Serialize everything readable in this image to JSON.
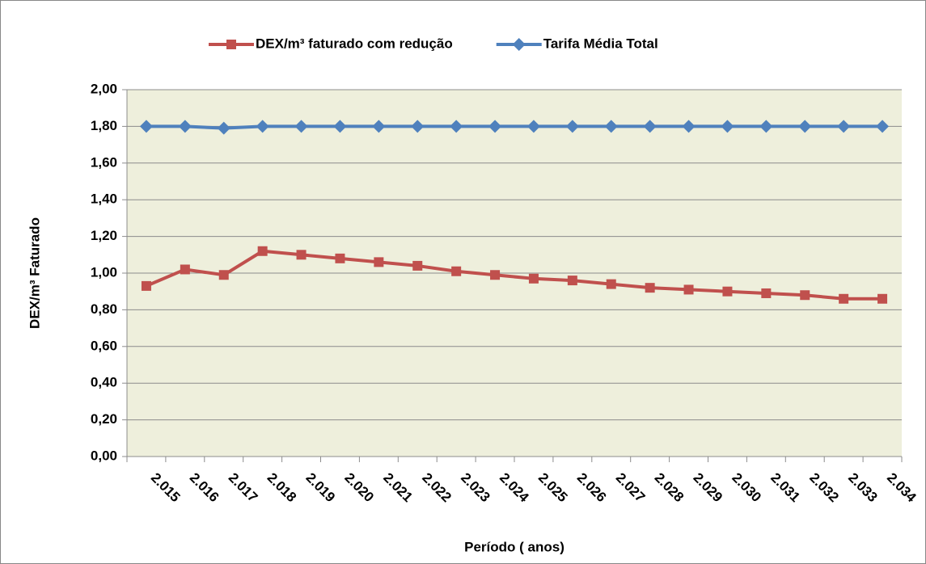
{
  "chart_data": {
    "type": "line",
    "categories": [
      "2.015",
      "2.016",
      "2.017",
      "2.018",
      "2.019",
      "2.020",
      "2.021",
      "2.022",
      "2.023",
      "2.024",
      "2.025",
      "2.026",
      "2.027",
      "2.028",
      "2.029",
      "2.030",
      "2.031",
      "2.032",
      "2.033",
      "2.034"
    ],
    "series": [
      {
        "name": "DEX/m³ faturado com redução",
        "color": "#c0504d",
        "marker": "square",
        "values": [
          0.93,
          1.02,
          0.99,
          1.12,
          1.1,
          1.08,
          1.06,
          1.04,
          1.01,
          0.99,
          0.97,
          0.96,
          0.94,
          0.92,
          0.91,
          0.9,
          0.89,
          0.88,
          0.86,
          0.86
        ]
      },
      {
        "name": "Tarifa Média Total",
        "color": "#4f81bd",
        "marker": "diamond",
        "values": [
          1.8,
          1.8,
          1.79,
          1.8,
          1.8,
          1.8,
          1.8,
          1.8,
          1.8,
          1.8,
          1.8,
          1.8,
          1.8,
          1.8,
          1.8,
          1.8,
          1.8,
          1.8,
          1.8,
          1.8
        ]
      }
    ],
    "y_label": "DEX/m³ Faturado",
    "x_label": "Período ( anos)",
    "ylim": [
      0,
      2
    ],
    "yticks": [
      {
        "value": 0,
        "label": "0,00"
      },
      {
        "value": 0.2,
        "label": "0,20"
      },
      {
        "value": 0.4,
        "label": "0,40"
      },
      {
        "value": 0.6,
        "label": "0,60"
      },
      {
        "value": 0.8,
        "label": "0,80"
      },
      {
        "value": 1,
        "label": "1,00"
      },
      {
        "value": 1.2,
        "label": "1,20"
      },
      {
        "value": 1.4,
        "label": "1,40"
      },
      {
        "value": 1.6,
        "label": "1,60"
      },
      {
        "value": 1.8,
        "label": "1,80"
      },
      {
        "value": 2,
        "label": "2,00"
      }
    ],
    "grid": true,
    "legend": "top"
  }
}
